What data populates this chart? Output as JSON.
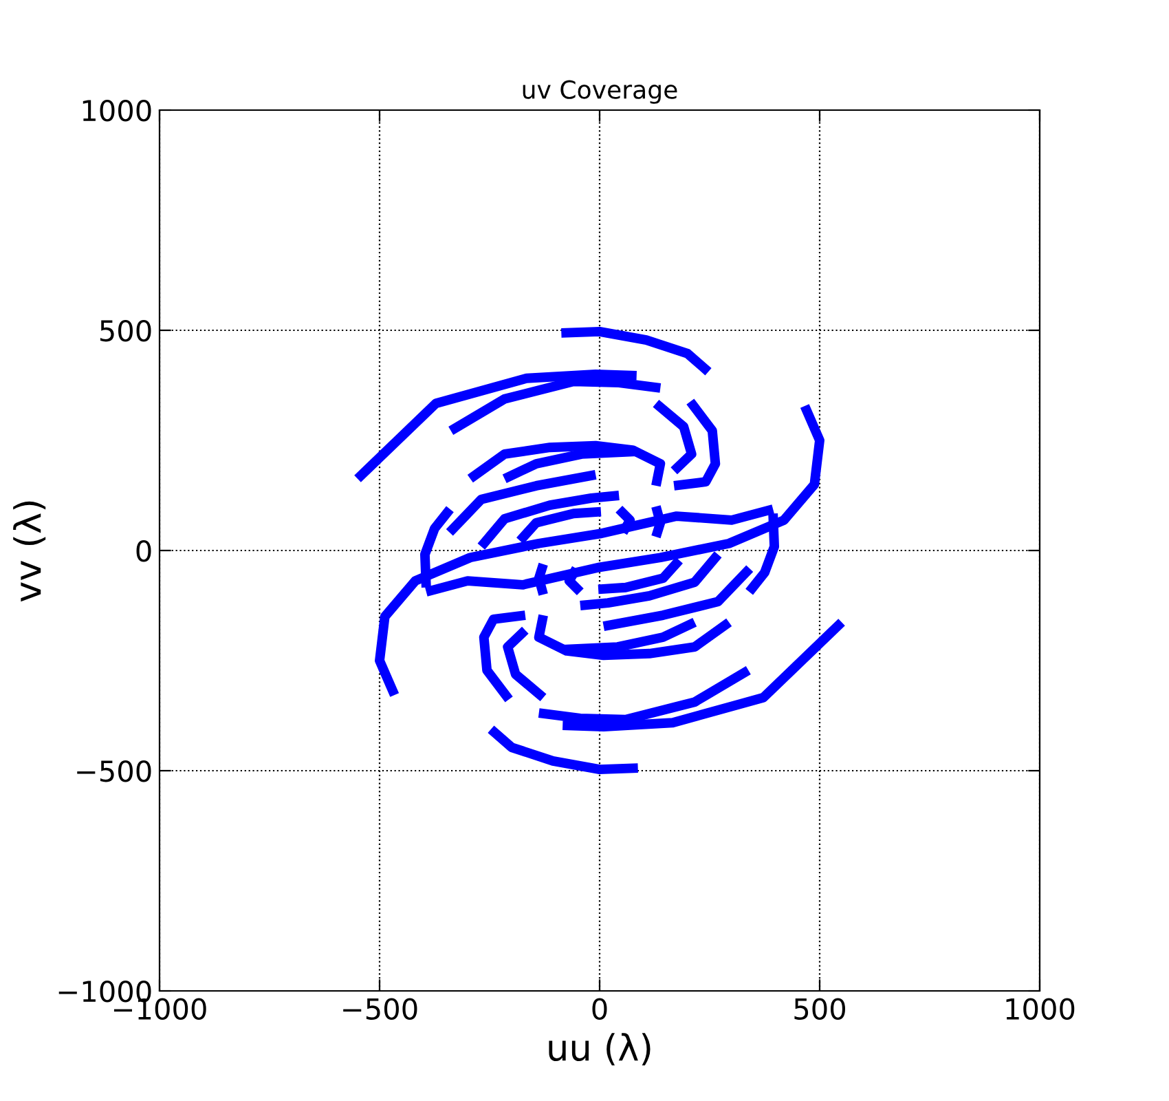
{
  "chart_data": {
    "type": "line",
    "title": "uv Coverage",
    "xlabel": "uu (λ)",
    "ylabel": "vv (λ)",
    "xlim": [
      -1000,
      1000
    ],
    "ylim": [
      -1000,
      1000
    ],
    "xticks": [
      {
        "value": -1000,
        "label": "−1000"
      },
      {
        "value": -500,
        "label": "−500"
      },
      0,
      500,
      1000
    ],
    "yticks": [
      {
        "value": -1000,
        "label": "−1000"
      },
      {
        "value": -500,
        "label": "−500"
      },
      0,
      500,
      1000
    ],
    "grid": true,
    "legend": false,
    "marker": "none",
    "line_style": "solid",
    "series": [
      {
        "color": "#0000ff",
        "x": [
          -87,
          0,
          106,
          200,
          247
        ],
        "values": [
          494,
          497,
          478,
          447,
          406
        ]
      },
      {
        "color": "#0000ff",
        "x": [
          87,
          0,
          -106,
          -200,
          -247
        ],
        "values": [
          -494,
          -497,
          -478,
          -447,
          -406
        ]
      },
      {
        "color": "#0000ff",
        "x": [
          -550,
          -372,
          -166,
          -9,
          84
        ],
        "values": [
          163,
          334,
          391,
          400,
          397
        ]
      },
      {
        "color": "#0000ff",
        "x": [
          550,
          372,
          166,
          9,
          -84
        ],
        "values": [
          -163,
          -334,
          -391,
          -400,
          -397
        ]
      },
      {
        "color": "#0000ff",
        "x": [
          -338,
          -216,
          -59,
          44,
          138
        ],
        "values": [
          272,
          344,
          384,
          381,
          369
        ]
      },
      {
        "color": "#0000ff",
        "x": [
          338,
          216,
          59,
          -44,
          -138
        ],
        "values": [
          -272,
          -344,
          -384,
          -381,
          -369
        ]
      },
      {
        "color": "#0000ff",
        "x": [
          128,
          191,
          209,
          169
        ],
        "values": [
          334,
          281,
          219,
          181
        ]
      },
      {
        "color": "#0000ff",
        "x": [
          -128,
          -191,
          -209,
          -169
        ],
        "values": [
          -334,
          -281,
          -219,
          -181
        ]
      },
      {
        "color": "#0000ff",
        "x": [
          206,
          256,
          263,
          241,
          169
        ],
        "values": [
          338,
          272,
          197,
          156,
          147
        ]
      },
      {
        "color": "#0000ff",
        "x": [
          -206,
          -256,
          -263,
          -241,
          -169
        ],
        "values": [
          -338,
          -272,
          -197,
          -156,
          -147
        ]
      },
      {
        "color": "#0000ff",
        "x": [
          466,
          500,
          488,
          419,
          294,
          138,
          0,
          -175,
          -300,
          -394
        ],
        "values": [
          328,
          250,
          150,
          69,
          16,
          -16,
          -38,
          -78,
          -69,
          -94
        ]
      },
      {
        "color": "#0000ff",
        "x": [
          -466,
          -500,
          -488,
          -419,
          -294,
          -138,
          0,
          175,
          300,
          394
        ],
        "values": [
          -328,
          -250,
          -150,
          -69,
          -16,
          16,
          38,
          78,
          69,
          94
        ]
      },
      {
        "color": "#0000ff",
        "x": [
          -294,
          -216,
          -113,
          -9,
          75,
          138,
          128
        ],
        "values": [
          163,
          219,
          234,
          238,
          228,
          197,
          147
        ]
      },
      {
        "color": "#0000ff",
        "x": [
          294,
          216,
          113,
          9,
          -75,
          -138,
          -128
        ],
        "values": [
          -163,
          -219,
          -234,
          -238,
          -228,
          -197,
          -147
        ]
      },
      {
        "color": "#0000ff",
        "x": [
          -216,
          -144,
          -41,
          84
        ],
        "values": [
          163,
          197,
          219,
          225
        ]
      },
      {
        "color": "#0000ff",
        "x": [
          216,
          144,
          41,
          -84
        ],
        "values": [
          -163,
          -197,
          -219,
          -225
        ]
      },
      {
        "color": "#0000ff",
        "x": [
          -341,
          -269,
          -144,
          -9
        ],
        "values": [
          41,
          116,
          147,
          172
        ]
      },
      {
        "color": "#0000ff",
        "x": [
          341,
          269,
          144,
          9
        ],
        "values": [
          -41,
          -116,
          -147,
          -172
        ]
      },
      {
        "color": "#0000ff",
        "x": [
          -269,
          -216,
          -113,
          -19,
          44
        ],
        "values": [
          9,
          72,
          103,
          119,
          125
        ]
      },
      {
        "color": "#0000ff",
        "x": [
          269,
          216,
          113,
          19,
          -44
        ],
        "values": [
          -9,
          -72,
          -103,
          -119,
          -125
        ]
      },
      {
        "color": "#0000ff",
        "x": [
          -181,
          -144,
          -59,
          3
        ],
        "values": [
          22,
          63,
          84,
          88
        ]
      },
      {
        "color": "#0000ff",
        "x": [
          181,
          144,
          59,
          -3
        ],
        "values": [
          -22,
          -63,
          -84,
          -88
        ]
      },
      {
        "color": "#0000ff",
        "x": [
          44,
          69,
          53
        ],
        "values": [
          94,
          69,
          41
        ]
      },
      {
        "color": "#0000ff",
        "x": [
          -44,
          -69,
          -53
        ],
        "values": [
          -94,
          -69,
          -41
        ]
      },
      {
        "color": "#0000ff",
        "x": [
          128,
          138,
          128
        ],
        "values": [
          100,
          63,
          31
        ]
      },
      {
        "color": "#0000ff",
        "x": [
          -128,
          -138,
          -128
        ],
        "values": [
          -100,
          -63,
          -31
        ]
      },
      {
        "color": "#0000ff",
        "x": [
          394,
          397,
          375,
          340
        ],
        "values": [
          84,
          9,
          -50,
          -94
        ]
      },
      {
        "color": "#0000ff",
        "x": [
          -394,
          -397,
          -375,
          -340
        ],
        "values": [
          -84,
          -9,
          50,
          94
        ]
      }
    ]
  }
}
